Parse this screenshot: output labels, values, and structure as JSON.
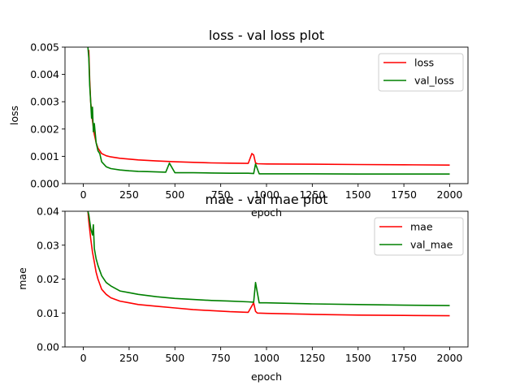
{
  "chart_data": [
    {
      "type": "line",
      "title": "loss - val loss plot",
      "xlabel": "epoch",
      "ylabel": "loss",
      "xlim": [
        -100,
        2100
      ],
      "ylim": [
        0,
        0.005
      ],
      "xticks": [
        "0",
        "250",
        "500",
        "750",
        "1000",
        "1250",
        "1500",
        "1750",
        "2000"
      ],
      "xtick_values": [
        0,
        250,
        500,
        750,
        1000,
        1250,
        1500,
        1750,
        2000
      ],
      "yticks": [
        "0.000",
        "0.001",
        "0.002",
        "0.003",
        "0.004",
        "0.005"
      ],
      "ytick_values": [
        0,
        0.001,
        0.002,
        0.003,
        0.004,
        0.005
      ],
      "grid": false,
      "legend_position": "upper right",
      "series": [
        {
          "name": "loss",
          "color": "#ff0000",
          "x": [
            30,
            35,
            40,
            50,
            60,
            70,
            80,
            100,
            125,
            150,
            200,
            250,
            300,
            400,
            500,
            600,
            700,
            800,
            900,
            920,
            930,
            940,
            950,
            1000,
            1250,
            1500,
            1750,
            2000
          ],
          "y": [
            0.0049,
            0.0038,
            0.003,
            0.0023,
            0.0018,
            0.0015,
            0.0013,
            0.0011,
            0.00102,
            0.00098,
            0.00093,
            0.0009,
            0.00087,
            0.00083,
            0.0008,
            0.00078,
            0.00076,
            0.00075,
            0.00074,
            0.0011,
            0.00105,
            0.00076,
            0.00073,
            0.00072,
            0.00071,
            0.0007,
            0.00069,
            0.00068
          ]
        },
        {
          "name": "val_loss",
          "color": "#008000",
          "x": [
            25,
            30,
            35,
            40,
            45,
            50,
            55,
            60,
            70,
            80,
            90,
            100,
            125,
            150,
            200,
            250,
            300,
            350,
            400,
            450,
            470,
            500,
            600,
            700,
            800,
            900,
            930,
            940,
            960,
            1000,
            1250,
            1500,
            1750,
            2000
          ],
          "y": [
            0.005,
            0.0046,
            0.0036,
            0.003,
            0.0024,
            0.0028,
            0.0019,
            0.0022,
            0.0015,
            0.0012,
            0.0011,
            0.0008,
            0.00062,
            0.00055,
            0.0005,
            0.00047,
            0.00045,
            0.00044,
            0.00043,
            0.00042,
            0.00075,
            0.0004,
            0.0004,
            0.00039,
            0.00038,
            0.00038,
            0.00037,
            0.00072,
            0.00036,
            0.00036,
            0.00036,
            0.00035,
            0.00035,
            0.00035
          ]
        }
      ]
    },
    {
      "type": "line",
      "title": "mae - val mae plot",
      "xlabel": "epoch",
      "ylabel": "mae",
      "xlim": [
        -100,
        2100
      ],
      "ylim": [
        0,
        0.04
      ],
      "xticks": [
        "0",
        "250",
        "500",
        "750",
        "1000",
        "1250",
        "1500",
        "1750",
        "2000"
      ],
      "xtick_values": [
        0,
        250,
        500,
        750,
        1000,
        1250,
        1500,
        1750,
        2000
      ],
      "yticks": [
        "0.00",
        "0.01",
        "0.02",
        "0.03",
        "0.04"
      ],
      "ytick_values": [
        0,
        0.01,
        0.02,
        0.03,
        0.04
      ],
      "grid": false,
      "legend_position": "upper right",
      "series": [
        {
          "name": "mae",
          "color": "#ff0000",
          "x": [
            25,
            30,
            40,
            50,
            60,
            70,
            80,
            100,
            125,
            150,
            200,
            250,
            300,
            400,
            500,
            600,
            700,
            800,
            900,
            930,
            940,
            950,
            1000,
            1250,
            1500,
            1750,
            2000
          ],
          "y": [
            0.04,
            0.037,
            0.032,
            0.028,
            0.025,
            0.022,
            0.02,
            0.017,
            0.0155,
            0.0145,
            0.0135,
            0.013,
            0.0125,
            0.012,
            0.0115,
            0.011,
            0.0107,
            0.0104,
            0.0102,
            0.013,
            0.0105,
            0.01,
            0.0099,
            0.0096,
            0.0094,
            0.0093,
            0.0092
          ]
        },
        {
          "name": "val_mae",
          "color": "#008000",
          "x": [
            25,
            30,
            40,
            50,
            55,
            60,
            70,
            80,
            100,
            125,
            150,
            200,
            250,
            300,
            400,
            500,
            600,
            700,
            800,
            900,
            930,
            940,
            960,
            1000,
            1250,
            1500,
            1750,
            2000
          ],
          "y": [
            0.04,
            0.039,
            0.035,
            0.033,
            0.036,
            0.029,
            0.026,
            0.024,
            0.021,
            0.019,
            0.018,
            0.0165,
            0.016,
            0.0155,
            0.0148,
            0.0143,
            0.014,
            0.0137,
            0.0135,
            0.0133,
            0.0132,
            0.019,
            0.013,
            0.013,
            0.0127,
            0.0125,
            0.0123,
            0.0122
          ]
        }
      ]
    }
  ]
}
